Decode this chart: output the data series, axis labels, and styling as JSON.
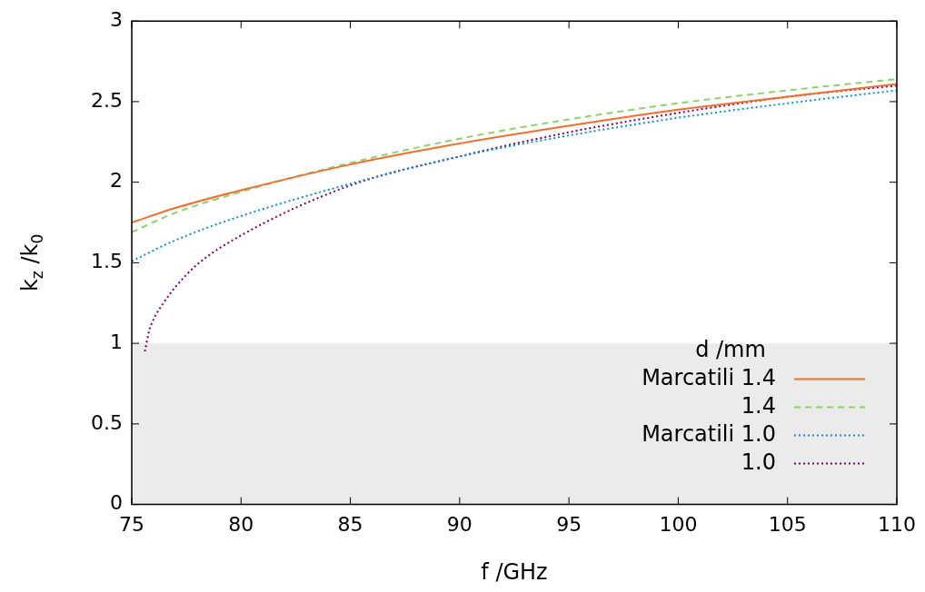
{
  "chart_data": {
    "type": "line",
    "xlabel": "f /GHz",
    "ylabel": "k$_{z}$ /k$_{0}$",
    "legend_title": "d /mm",
    "xlim": [
      75,
      110
    ],
    "xticks": [
      75,
      80,
      85,
      90,
      95,
      100,
      105,
      110
    ],
    "ylim": [
      0,
      3
    ],
    "yticks": [
      0,
      0.5,
      1,
      1.5,
      2,
      2.5,
      3
    ],
    "grid": false,
    "legend": "bottom right",
    "marker": "none",
    "bands": [
      {
        "axis": "y",
        "from": 0,
        "to": 1,
        "color": "#ebebeb"
      }
    ],
    "series": [
      {
        "name": "Marcatili 1.4",
        "color": "#f07030",
        "line_style": "solid",
        "x": [
          75,
          77,
          80,
          85,
          90,
          95,
          100,
          105,
          110
        ],
        "values": [
          1.75,
          1.84,
          1.95,
          2.11,
          2.24,
          2.35,
          2.45,
          2.53,
          2.61
        ]
      },
      {
        "name": "1.4",
        "color": "#90d070",
        "line_style": "dashed",
        "x": [
          75,
          77,
          80,
          85,
          90,
          95,
          100,
          105,
          110
        ],
        "values": [
          1.69,
          1.81,
          1.94,
          2.12,
          2.27,
          2.39,
          2.49,
          2.57,
          2.64
        ]
      },
      {
        "name": "Marcatili 1.0",
        "color": "#1090c8",
        "line_style": "dotted",
        "x": [
          75,
          77,
          80,
          85,
          90,
          95,
          100,
          105,
          110
        ],
        "values": [
          1.51,
          1.64,
          1.79,
          1.99,
          2.16,
          2.29,
          2.4,
          2.49,
          2.57
        ]
      },
      {
        "name": "1.0",
        "color": "#800060",
        "line_style": "dotted",
        "x": [
          75.6,
          75.8,
          76,
          76.5,
          77,
          78,
          80,
          85,
          90,
          95,
          100,
          105,
          110
        ],
        "values": [
          0.95,
          1.08,
          1.15,
          1.26,
          1.35,
          1.49,
          1.67,
          1.98,
          2.16,
          2.31,
          2.43,
          2.53,
          2.6
        ]
      }
    ]
  }
}
